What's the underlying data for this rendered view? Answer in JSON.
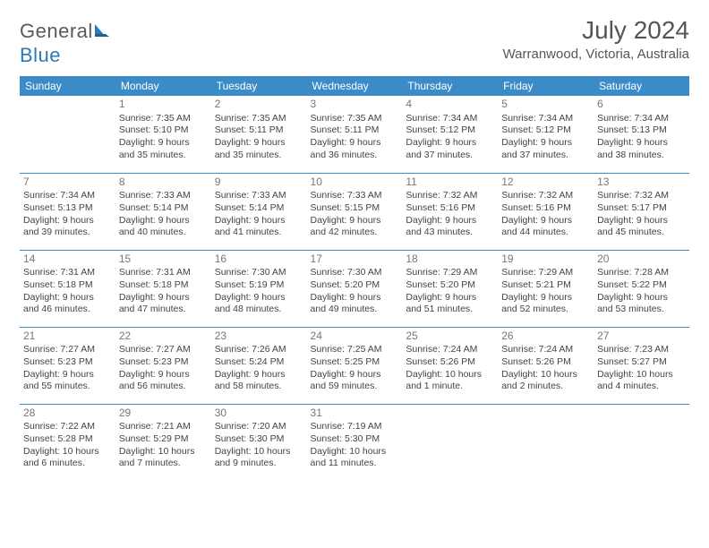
{
  "logo": {
    "text_general": "General",
    "text_blue": "Blue"
  },
  "header": {
    "month_title": "July 2024",
    "location": "Warranwood, Victoria, Australia"
  },
  "colors": {
    "header_bg": "#3b8bc9",
    "header_text": "#ffffff",
    "divider": "#3b8bc9",
    "body_text": "#444444",
    "daynum_text": "#777777",
    "logo_gray": "#5a5a5a",
    "logo_blue": "#2a7ab8"
  },
  "day_names": [
    "Sunday",
    "Monday",
    "Tuesday",
    "Wednesday",
    "Thursday",
    "Friday",
    "Saturday"
  ],
  "weeks": [
    [
      null,
      {
        "n": "1",
        "sr": "Sunrise: 7:35 AM",
        "ss": "Sunset: 5:10 PM",
        "d1": "Daylight: 9 hours",
        "d2": "and 35 minutes."
      },
      {
        "n": "2",
        "sr": "Sunrise: 7:35 AM",
        "ss": "Sunset: 5:11 PM",
        "d1": "Daylight: 9 hours",
        "d2": "and 35 minutes."
      },
      {
        "n": "3",
        "sr": "Sunrise: 7:35 AM",
        "ss": "Sunset: 5:11 PM",
        "d1": "Daylight: 9 hours",
        "d2": "and 36 minutes."
      },
      {
        "n": "4",
        "sr": "Sunrise: 7:34 AM",
        "ss": "Sunset: 5:12 PM",
        "d1": "Daylight: 9 hours",
        "d2": "and 37 minutes."
      },
      {
        "n": "5",
        "sr": "Sunrise: 7:34 AM",
        "ss": "Sunset: 5:12 PM",
        "d1": "Daylight: 9 hours",
        "d2": "and 37 minutes."
      },
      {
        "n": "6",
        "sr": "Sunrise: 7:34 AM",
        "ss": "Sunset: 5:13 PM",
        "d1": "Daylight: 9 hours",
        "d2": "and 38 minutes."
      }
    ],
    [
      {
        "n": "7",
        "sr": "Sunrise: 7:34 AM",
        "ss": "Sunset: 5:13 PM",
        "d1": "Daylight: 9 hours",
        "d2": "and 39 minutes."
      },
      {
        "n": "8",
        "sr": "Sunrise: 7:33 AM",
        "ss": "Sunset: 5:14 PM",
        "d1": "Daylight: 9 hours",
        "d2": "and 40 minutes."
      },
      {
        "n": "9",
        "sr": "Sunrise: 7:33 AM",
        "ss": "Sunset: 5:14 PM",
        "d1": "Daylight: 9 hours",
        "d2": "and 41 minutes."
      },
      {
        "n": "10",
        "sr": "Sunrise: 7:33 AM",
        "ss": "Sunset: 5:15 PM",
        "d1": "Daylight: 9 hours",
        "d2": "and 42 minutes."
      },
      {
        "n": "11",
        "sr": "Sunrise: 7:32 AM",
        "ss": "Sunset: 5:16 PM",
        "d1": "Daylight: 9 hours",
        "d2": "and 43 minutes."
      },
      {
        "n": "12",
        "sr": "Sunrise: 7:32 AM",
        "ss": "Sunset: 5:16 PM",
        "d1": "Daylight: 9 hours",
        "d2": "and 44 minutes."
      },
      {
        "n": "13",
        "sr": "Sunrise: 7:32 AM",
        "ss": "Sunset: 5:17 PM",
        "d1": "Daylight: 9 hours",
        "d2": "and 45 minutes."
      }
    ],
    [
      {
        "n": "14",
        "sr": "Sunrise: 7:31 AM",
        "ss": "Sunset: 5:18 PM",
        "d1": "Daylight: 9 hours",
        "d2": "and 46 minutes."
      },
      {
        "n": "15",
        "sr": "Sunrise: 7:31 AM",
        "ss": "Sunset: 5:18 PM",
        "d1": "Daylight: 9 hours",
        "d2": "and 47 minutes."
      },
      {
        "n": "16",
        "sr": "Sunrise: 7:30 AM",
        "ss": "Sunset: 5:19 PM",
        "d1": "Daylight: 9 hours",
        "d2": "and 48 minutes."
      },
      {
        "n": "17",
        "sr": "Sunrise: 7:30 AM",
        "ss": "Sunset: 5:20 PM",
        "d1": "Daylight: 9 hours",
        "d2": "and 49 minutes."
      },
      {
        "n": "18",
        "sr": "Sunrise: 7:29 AM",
        "ss": "Sunset: 5:20 PM",
        "d1": "Daylight: 9 hours",
        "d2": "and 51 minutes."
      },
      {
        "n": "19",
        "sr": "Sunrise: 7:29 AM",
        "ss": "Sunset: 5:21 PM",
        "d1": "Daylight: 9 hours",
        "d2": "and 52 minutes."
      },
      {
        "n": "20",
        "sr": "Sunrise: 7:28 AM",
        "ss": "Sunset: 5:22 PM",
        "d1": "Daylight: 9 hours",
        "d2": "and 53 minutes."
      }
    ],
    [
      {
        "n": "21",
        "sr": "Sunrise: 7:27 AM",
        "ss": "Sunset: 5:23 PM",
        "d1": "Daylight: 9 hours",
        "d2": "and 55 minutes."
      },
      {
        "n": "22",
        "sr": "Sunrise: 7:27 AM",
        "ss": "Sunset: 5:23 PM",
        "d1": "Daylight: 9 hours",
        "d2": "and 56 minutes."
      },
      {
        "n": "23",
        "sr": "Sunrise: 7:26 AM",
        "ss": "Sunset: 5:24 PM",
        "d1": "Daylight: 9 hours",
        "d2": "and 58 minutes."
      },
      {
        "n": "24",
        "sr": "Sunrise: 7:25 AM",
        "ss": "Sunset: 5:25 PM",
        "d1": "Daylight: 9 hours",
        "d2": "and 59 minutes."
      },
      {
        "n": "25",
        "sr": "Sunrise: 7:24 AM",
        "ss": "Sunset: 5:26 PM",
        "d1": "Daylight: 10 hours",
        "d2": "and 1 minute."
      },
      {
        "n": "26",
        "sr": "Sunrise: 7:24 AM",
        "ss": "Sunset: 5:26 PM",
        "d1": "Daylight: 10 hours",
        "d2": "and 2 minutes."
      },
      {
        "n": "27",
        "sr": "Sunrise: 7:23 AM",
        "ss": "Sunset: 5:27 PM",
        "d1": "Daylight: 10 hours",
        "d2": "and 4 minutes."
      }
    ],
    [
      {
        "n": "28",
        "sr": "Sunrise: 7:22 AM",
        "ss": "Sunset: 5:28 PM",
        "d1": "Daylight: 10 hours",
        "d2": "and 6 minutes."
      },
      {
        "n": "29",
        "sr": "Sunrise: 7:21 AM",
        "ss": "Sunset: 5:29 PM",
        "d1": "Daylight: 10 hours",
        "d2": "and 7 minutes."
      },
      {
        "n": "30",
        "sr": "Sunrise: 7:20 AM",
        "ss": "Sunset: 5:30 PM",
        "d1": "Daylight: 10 hours",
        "d2": "and 9 minutes."
      },
      {
        "n": "31",
        "sr": "Sunrise: 7:19 AM",
        "ss": "Sunset: 5:30 PM",
        "d1": "Daylight: 10 hours",
        "d2": "and 11 minutes."
      },
      null,
      null,
      null
    ]
  ]
}
